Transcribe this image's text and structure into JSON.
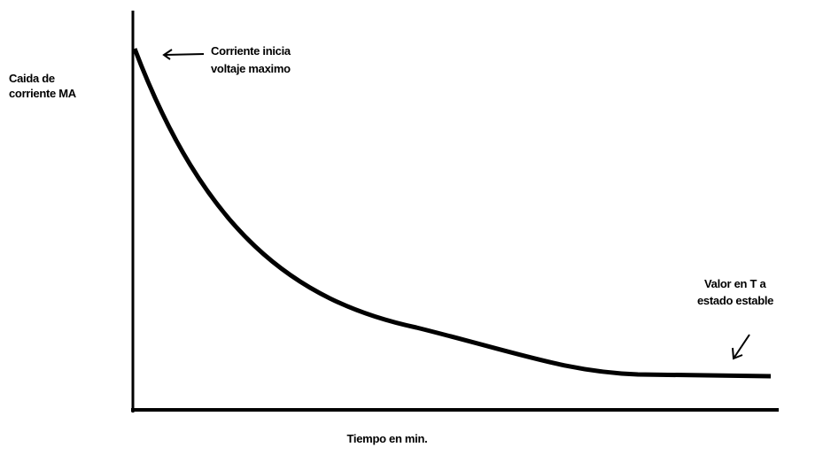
{
  "diagram": {
    "y_axis_label": [
      "Caida de",
      "corriente MA"
    ],
    "start_annotation": [
      "Corriente inicia",
      "voltaje maximo"
    ],
    "end_annotation": [
      "Valor en T a",
      "estado estable"
    ],
    "x_axis_label": "Tiempo en min."
  }
}
